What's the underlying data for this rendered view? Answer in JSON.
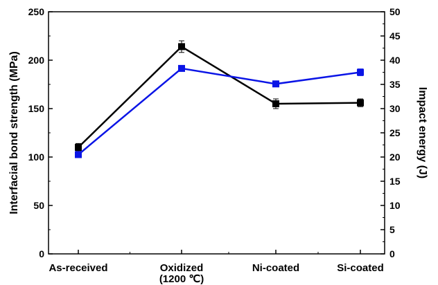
{
  "chart_data": {
    "type": "line",
    "categories": [
      "As-received",
      "Oxidized",
      "Ni-coated",
      "Si-coated"
    ],
    "category_sublabels": [
      "",
      "(1200 ℃)",
      "",
      ""
    ],
    "ylabel": "Interfacial bond strength (MPa)",
    "y2label": "Impact energy (J)",
    "ylim": [
      0,
      250
    ],
    "y2lim": [
      0,
      50
    ],
    "yticks": [
      "0",
      "50",
      "100",
      "150",
      "200",
      "250"
    ],
    "y2ticks": [
      "0",
      "5",
      "10",
      "15",
      "20",
      "25",
      "30",
      "35",
      "40",
      "45",
      "50"
    ],
    "grid": false,
    "series": [
      {
        "axis": "left",
        "color": "#000000",
        "marker": "square",
        "values": [
          110,
          214,
          155,
          156
        ],
        "errors": [
          4,
          6,
          5,
          4
        ]
      },
      {
        "axis": "right",
        "color": "#0a14e6",
        "marker": "square",
        "values": [
          20.5,
          38.3,
          35.1,
          37.5
        ],
        "errors": [
          0.4,
          0.5,
          0.4,
          0.7
        ]
      }
    ]
  }
}
